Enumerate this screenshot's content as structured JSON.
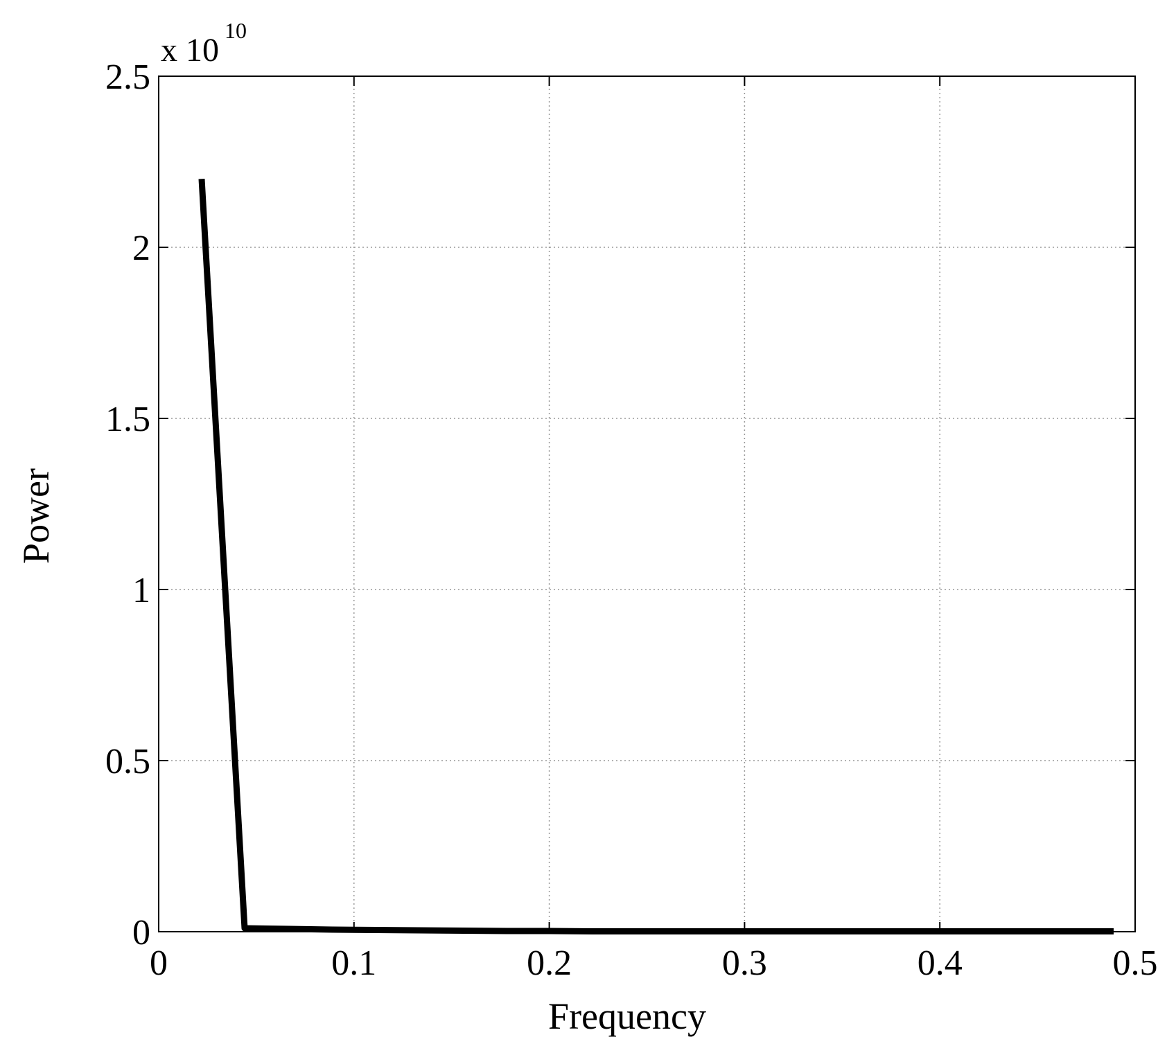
{
  "chart_data": {
    "type": "line",
    "xlabel": "Frequency",
    "ylabel": "Power",
    "y_multiplier": {
      "base": "x 10",
      "exponent": "10"
    },
    "x": [
      0.022,
      0.044,
      0.067,
      0.089,
      0.111,
      0.133,
      0.156,
      0.178,
      0.2,
      0.222,
      0.244,
      0.267,
      0.289,
      0.311,
      0.333,
      0.356,
      0.378,
      0.4,
      0.422,
      0.444,
      0.467,
      0.489
    ],
    "series": [
      {
        "name": "Power",
        "color": "#000000",
        "values": [
          2.2,
          0.01,
          0.008,
          0.006,
          0.005,
          0.004,
          0.003,
          0.002,
          0.002,
          0.001,
          0.001,
          0.001,
          0.001,
          0.001,
          0.001,
          0.001,
          0.001,
          0.001,
          0.001,
          0.001,
          0.001,
          0.001
        ]
      }
    ],
    "xlim": [
      0,
      0.5
    ],
    "xticks": [
      0,
      0.1,
      0.2,
      0.3,
      0.4,
      0.5
    ],
    "ylim": [
      0,
      2.5
    ],
    "yticks": [
      0,
      0.5,
      1,
      1.5,
      2,
      2.5
    ],
    "grid": true
  }
}
